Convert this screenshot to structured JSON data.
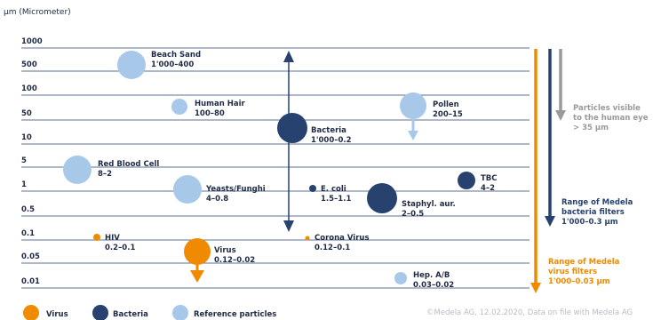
{
  "chart_data": {
    "type": "scatter",
    "unit_label": "µm (Micrometer)",
    "y_scale": "log",
    "y_ticks": [
      "1000",
      "500",
      "100",
      "50",
      "10",
      "5",
      "1",
      "0.5",
      "0.1",
      "0.05",
      "0.01"
    ],
    "colors": {
      "virus": "#f08a00",
      "bacteria": "#27426f",
      "reference": "#a8c8ea",
      "visible_arrow": "#9a9a9a",
      "gridline": "#27426f",
      "text": "#1f2a44"
    },
    "particles": [
      {
        "name": "Beach Sand",
        "range": "1'000–400",
        "category": "reference",
        "size": "large"
      },
      {
        "name": "Human Hair",
        "range": "100–80",
        "category": "reference",
        "size": "small"
      },
      {
        "name": "Pollen",
        "range": "200–15",
        "category": "reference",
        "size": "large",
        "arrow": "down"
      },
      {
        "name": "Bacteria",
        "range": "1'000–0.2",
        "category": "bacteria",
        "size": "large",
        "arrow": "both"
      },
      {
        "name": "Red Blood Cell",
        "range": "8–2",
        "category": "reference",
        "size": "large"
      },
      {
        "name": "TBC",
        "range": "4–2",
        "category": "bacteria",
        "size": "medium"
      },
      {
        "name": "Yeasts/Funghi",
        "range": "4–0.8",
        "category": "reference",
        "size": "large"
      },
      {
        "name": "E. coli",
        "range": "1.5–1.1",
        "category": "bacteria",
        "size": "tiny"
      },
      {
        "name": "Staphyl. aur.",
        "range": "2–0.5",
        "category": "bacteria",
        "size": "large"
      },
      {
        "name": "HIV",
        "range": "0.2–0.1",
        "category": "virus",
        "size": "tiny"
      },
      {
        "name": "Corona Virus",
        "range": "0.12–0.1",
        "category": "virus",
        "size": "micro"
      },
      {
        "name": "Virus",
        "range": "0.12–0.02",
        "category": "virus",
        "size": "large",
        "arrow": "down"
      },
      {
        "name": "Hep. A/B",
        "range": "0.03–0.02",
        "category": "reference",
        "size": "small"
      }
    ],
    "vertical_indicators": [
      {
        "lines": [
          "Particles visible",
          "to the human eye",
          "> 35 µm"
        ],
        "color": "visible_arrow"
      },
      {
        "lines": [
          "Range of Medela",
          "bacteria filters",
          "1'000–0.3 µm"
        ],
        "color": "bacteria"
      },
      {
        "lines": [
          "Range of Medela",
          "virus filters",
          "1'000–0.03 µm"
        ],
        "color": "virus"
      }
    ],
    "legend": [
      {
        "label": "Virus",
        "category": "virus"
      },
      {
        "label": "Bacteria",
        "category": "bacteria"
      },
      {
        "label": "Reference particles",
        "category": "reference"
      }
    ],
    "footer": "©Medela AG, 12.02.2020, Data on file with Medela AG"
  }
}
